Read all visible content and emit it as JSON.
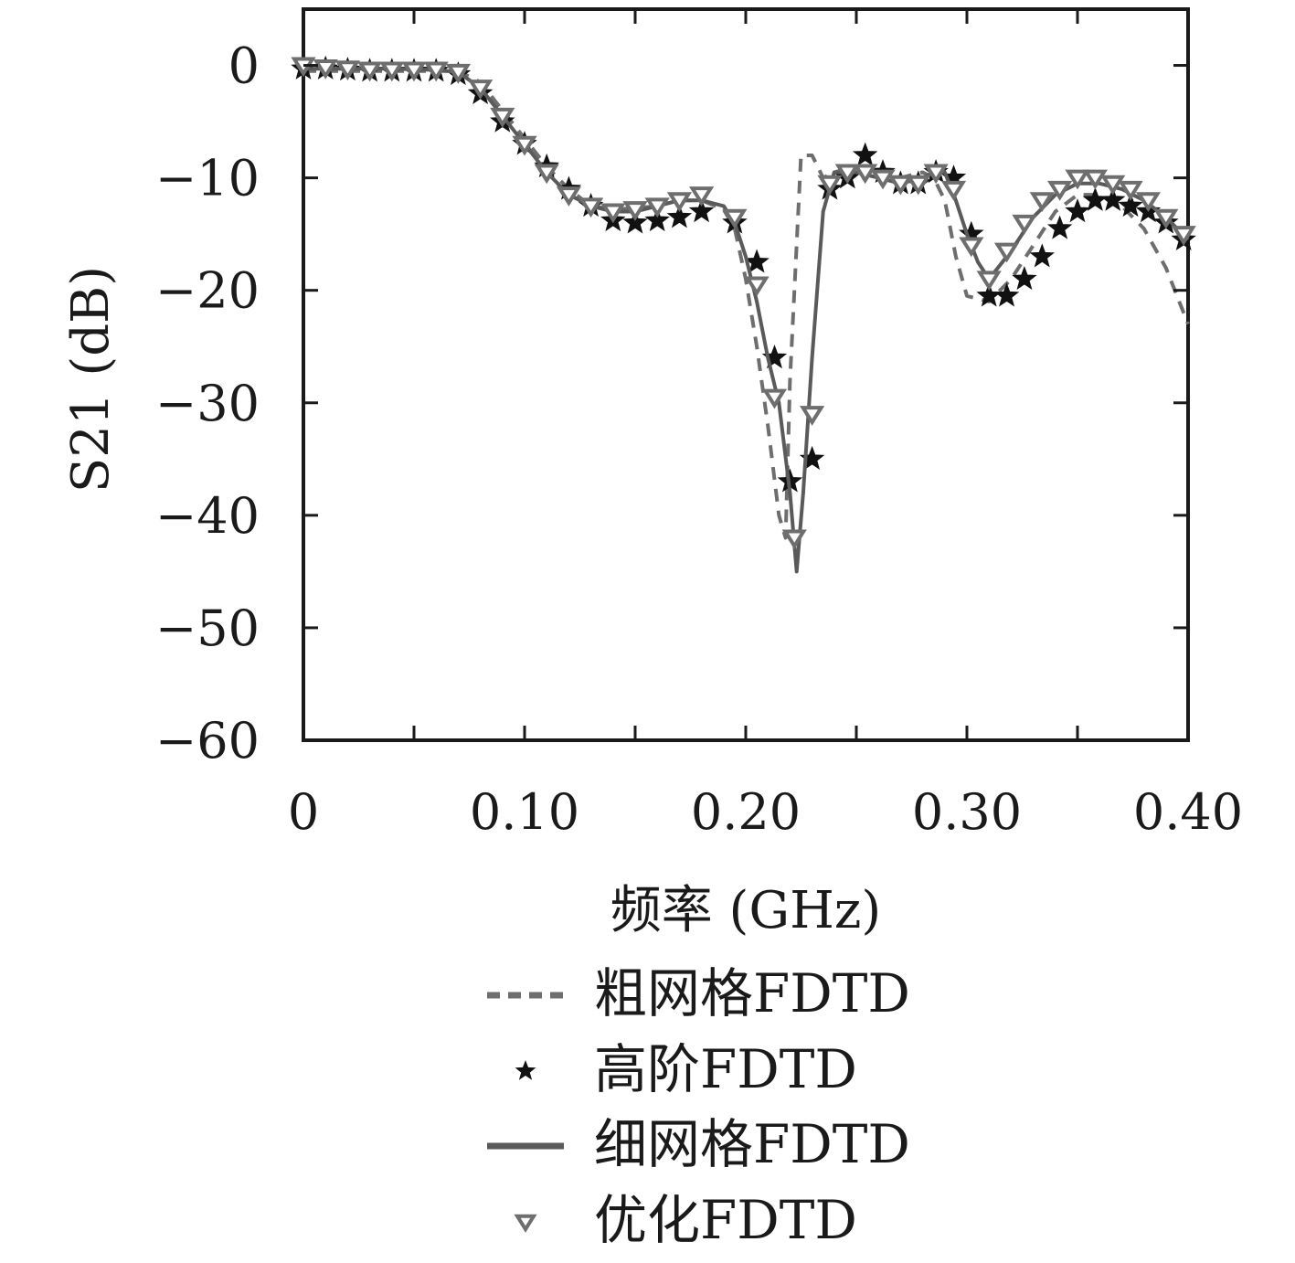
{
  "chart_data": {
    "type": "line",
    "title": "",
    "xlabel": "频率 (GHz)",
    "ylabel": "S21 (dB)",
    "xlim": [
      0,
      0.4
    ],
    "ylim": [
      -60,
      5
    ],
    "x_ticks": [
      0,
      0.1,
      0.2,
      0.3,
      0.4
    ],
    "x_tick_labels": [
      "0",
      "0.10",
      "0.20",
      "0.30",
      "0.40"
    ],
    "y_ticks": [
      0,
      -10,
      -20,
      -30,
      -40,
      -50,
      -60
    ],
    "y_tick_labels": [
      "0",
      "−10",
      "−20",
      "−30",
      "−40",
      "−50",
      "−60"
    ],
    "grid": false,
    "legend_position": "bottom",
    "series": [
      {
        "name": "粗网格FDTD",
        "style": "dashed",
        "marker": "none",
        "color": "#6e6e6e",
        "x": [
          0,
          0.02,
          0.04,
          0.06,
          0.07,
          0.08,
          0.09,
          0.1,
          0.11,
          0.12,
          0.13,
          0.14,
          0.15,
          0.16,
          0.17,
          0.18,
          0.19,
          0.195,
          0.2,
          0.205,
          0.21,
          0.215,
          0.218,
          0.22,
          0.225,
          0.23,
          0.235,
          0.24,
          0.25,
          0.26,
          0.27,
          0.28,
          0.285,
          0.29,
          0.295,
          0.3,
          0.31,
          0.32,
          0.33,
          0.34,
          0.35,
          0.36,
          0.37,
          0.38,
          0.39,
          0.4
        ],
        "y": [
          -0.5,
          -0.5,
          -0.5,
          -0.5,
          -0.5,
          -1.5,
          -4,
          -6.5,
          -9,
          -11,
          -12.5,
          -12.8,
          -12.7,
          -12.5,
          -12,
          -12,
          -12.8,
          -14.5,
          -19,
          -25,
          -32,
          -40,
          -42,
          -28,
          -8,
          -8,
          -10,
          -9.5,
          -9,
          -9.5,
          -10,
          -9.5,
          -10,
          -12,
          -17,
          -20.5,
          -21,
          -19,
          -16,
          -13,
          -11.5,
          -11.5,
          -12.5,
          -14.5,
          -18,
          -23
        ]
      },
      {
        "name": "高阶FDTD",
        "style": "none",
        "marker": "star",
        "color": "#111111",
        "x": [
          0,
          0.01,
          0.02,
          0.03,
          0.04,
          0.05,
          0.06,
          0.07,
          0.08,
          0.09,
          0.1,
          0.11,
          0.12,
          0.13,
          0.14,
          0.15,
          0.16,
          0.17,
          0.18,
          0.195,
          0.205,
          0.213,
          0.22,
          0.23,
          0.238,
          0.246,
          0.254,
          0.262,
          0.27,
          0.278,
          0.286,
          0.294,
          0.302,
          0.31,
          0.318,
          0.326,
          0.334,
          0.342,
          0.35,
          0.358,
          0.366,
          0.374,
          0.382,
          0.39,
          0.398
        ],
        "y": [
          -0.3,
          -0.3,
          -0.4,
          -0.5,
          -0.5,
          -0.5,
          -0.5,
          -0.8,
          -2.5,
          -5,
          -7,
          -9,
          -11,
          -12.5,
          -13.8,
          -14,
          -13.8,
          -13.5,
          -13,
          -14,
          -17.5,
          -26,
          -37,
          -35,
          -11,
          -10,
          -8,
          -9.5,
          -10.5,
          -10.5,
          -9.5,
          -10,
          -15,
          -20.5,
          -20.5,
          -19,
          -17,
          -14.5,
          -13,
          -12,
          -12,
          -12.5,
          -13,
          -14,
          -15.5
        ]
      },
      {
        "name": "细网格FDTD",
        "style": "solid",
        "marker": "none",
        "color": "#5a5a5a",
        "x": [
          0,
          0.02,
          0.04,
          0.06,
          0.07,
          0.08,
          0.09,
          0.1,
          0.11,
          0.12,
          0.13,
          0.14,
          0.15,
          0.16,
          0.17,
          0.18,
          0.19,
          0.195,
          0.2,
          0.205,
          0.21,
          0.215,
          0.22,
          0.223,
          0.226,
          0.23,
          0.235,
          0.24,
          0.25,
          0.26,
          0.27,
          0.28,
          0.285,
          0.29,
          0.295,
          0.3,
          0.305,
          0.31,
          0.32,
          0.33,
          0.34,
          0.35,
          0.36,
          0.37,
          0.38,
          0.39,
          0.4
        ],
        "y": [
          -0.3,
          -0.3,
          -0.3,
          -0.4,
          -0.6,
          -2,
          -4.5,
          -7,
          -9.5,
          -11.5,
          -12.5,
          -13,
          -13,
          -12.5,
          -12,
          -12,
          -12.5,
          -14,
          -17,
          -21,
          -26,
          -30,
          -38,
          -45,
          -38,
          -26,
          -13,
          -9.5,
          -9.5,
          -10,
          -10.5,
          -10,
          -9.5,
          -9.5,
          -12,
          -15,
          -17.5,
          -19,
          -16.5,
          -13.5,
          -11.5,
          -10.5,
          -10.5,
          -11,
          -12,
          -13.5,
          -15.5
        ]
      },
      {
        "name": "优化FDTD",
        "style": "none",
        "marker": "triangle-down",
        "color": "#6e6e6e",
        "x": [
          0,
          0.01,
          0.02,
          0.03,
          0.04,
          0.05,
          0.06,
          0.07,
          0.08,
          0.09,
          0.1,
          0.11,
          0.12,
          0.13,
          0.14,
          0.15,
          0.16,
          0.17,
          0.18,
          0.195,
          0.205,
          0.213,
          0.222,
          0.23,
          0.238,
          0.246,
          0.254,
          0.262,
          0.27,
          0.278,
          0.286,
          0.294,
          0.302,
          0.31,
          0.318,
          0.326,
          0.334,
          0.342,
          0.35,
          0.358,
          0.366,
          0.374,
          0.382,
          0.39,
          0.398
        ],
        "y": [
          0,
          -0.2,
          -0.3,
          -0.4,
          -0.4,
          -0.4,
          -0.4,
          -0.6,
          -2,
          -4.5,
          -7,
          -9.5,
          -11.5,
          -12.5,
          -13,
          -12.8,
          -12.5,
          -12,
          -11.5,
          -13.5,
          -19.5,
          -29.5,
          -42,
          -31,
          -10.5,
          -9.5,
          -9.5,
          -10,
          -10.5,
          -10.5,
          -9.5,
          -11,
          -16,
          -19,
          -16.5,
          -14,
          -12,
          -11,
          -10,
          -10,
          -10.5,
          -11,
          -12,
          -13.5,
          -15
        ]
      }
    ]
  }
}
